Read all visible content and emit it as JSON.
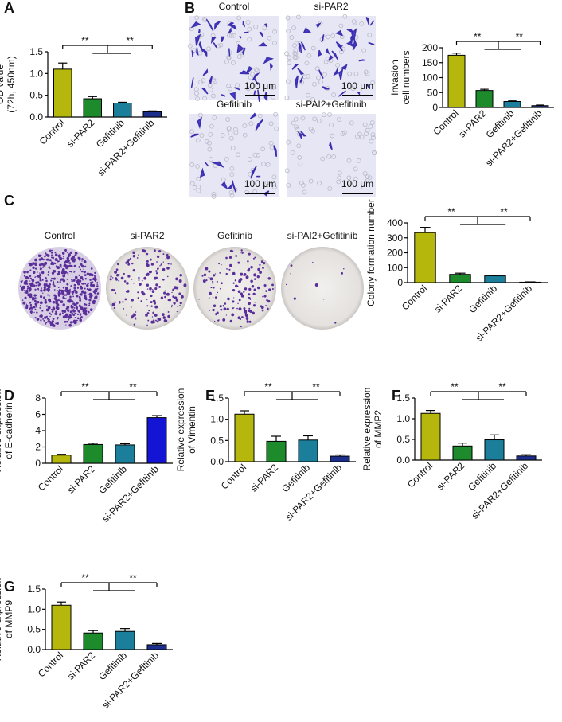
{
  "panel_letters": [
    "A",
    "B",
    "C",
    "D",
    "E",
    "F",
    "G"
  ],
  "micrographs": {
    "labels": [
      "Control",
      "si-PAR2",
      "Gefitinib",
      "si-PAI2+Gefitinib"
    ],
    "scale_bar": "100 μm"
  },
  "colony_plates": {
    "labels": [
      "Control",
      "si-PAR2",
      "Gefitinib",
      "si-PAI2+Gefitinib"
    ]
  },
  "chart_data": [
    {
      "type": "bar",
      "ylabel": [
        "OD value",
        "(72h, 450nm)"
      ],
      "categories": [
        "Control",
        "si-PAR2",
        "Gefitinib",
        "si-PAR2+Gefitinib"
      ],
      "values": [
        1.1,
        0.42,
        0.32,
        0.12
      ],
      "errors": [
        0.14,
        0.05,
        0.02,
        0.02
      ],
      "colors": [
        "#b5b70c",
        "#1d8a2c",
        "#1b7f9b",
        "#1d2f8c"
      ],
      "ylim": [
        0,
        1.5
      ],
      "yticks": [
        {
          "value": 0,
          "label": "0.0"
        },
        {
          "value": 0.5,
          "label": "0.5"
        },
        {
          "value": 1,
          "label": "1.0"
        },
        {
          "value": 1.5,
          "label": "1.5"
        }
      ],
      "annotations": [
        "**",
        "**"
      ]
    },
    {
      "type": "bar",
      "ylabel": [
        "Invasion",
        "cell numbers"
      ],
      "categories": [
        "Control",
        "si-PAR2",
        "Gefitinib",
        "si-PAR2+Gefitinib"
      ],
      "values": [
        175,
        57,
        20,
        6
      ],
      "errors": [
        7,
        4,
        2,
        2
      ],
      "colors": [
        "#b5b70c",
        "#1d8a2c",
        "#1b7f9b",
        "#1d2f8c"
      ],
      "ylim": [
        0,
        200
      ],
      "yticks": [
        0,
        50,
        100,
        150,
        200
      ],
      "annotations": [
        "**",
        "**"
      ]
    },
    {
      "type": "bar",
      "ylabel": [
        "Colony formation number"
      ],
      "categories": [
        "Control",
        "si-PAR2",
        "Gefitinib",
        "si-PAR2+Gefitinib"
      ],
      "values": [
        335,
        55,
        45,
        3
      ],
      "errors": [
        35,
        8,
        5,
        2
      ],
      "colors": [
        "#b5b70c",
        "#1d8a2c",
        "#1b7f9b",
        "#1d2f8c"
      ],
      "ylim": [
        0,
        400
      ],
      "yticks": [
        0,
        100,
        200,
        300,
        400
      ],
      "annotations": [
        "**",
        "**"
      ]
    },
    {
      "type": "bar",
      "ylabel": [
        "Relative expression",
        "of E-cadherin"
      ],
      "categories": [
        "Control",
        "si-PAR2",
        "Gefitinib",
        "si-PAR2+Gefitinib"
      ],
      "values": [
        1,
        2.3,
        2.25,
        5.6
      ],
      "errors": [
        0.1,
        0.15,
        0.15,
        0.25
      ],
      "colors": [
        "#b5b70c",
        "#1d8a2c",
        "#1b7f9b",
        "#1414d4"
      ],
      "ylim": [
        0,
        8
      ],
      "yticks": [
        0,
        2,
        4,
        6,
        8
      ],
      "annotations": [
        "**",
        "**"
      ]
    },
    {
      "type": "bar",
      "ylabel": [
        "Relative expression",
        "of Vimentin"
      ],
      "categories": [
        "Control",
        "si-PAR2",
        "Gefitinib",
        "si-PAR2+Gefitinib"
      ],
      "values": [
        1.12,
        0.48,
        0.51,
        0.13
      ],
      "errors": [
        0.08,
        0.12,
        0.1,
        0.03
      ],
      "colors": [
        "#b5b70c",
        "#1d8a2c",
        "#1b7f9b",
        "#1d2f8c"
      ],
      "ylim": [
        0,
        1.5
      ],
      "yticks": [
        {
          "value": 0,
          "label": "0.0"
        },
        {
          "value": 0.5,
          "label": "0.5"
        },
        {
          "value": 1,
          "label": "1.0"
        },
        {
          "value": 1.5,
          "label": "1.5"
        }
      ],
      "annotations": [
        "**",
        "**"
      ]
    },
    {
      "type": "bar",
      "ylabel": [
        "Relative expression",
        "of MMP2"
      ],
      "categories": [
        "Control",
        "si-PAR2",
        "Gefitinib",
        "si-PAR2+Gefitinib"
      ],
      "values": [
        1.13,
        0.34,
        0.49,
        0.1
      ],
      "errors": [
        0.07,
        0.07,
        0.12,
        0.03
      ],
      "colors": [
        "#b5b70c",
        "#1d8a2c",
        "#1b7f9b",
        "#1d2f8c"
      ],
      "ylim": [
        0,
        1.5
      ],
      "yticks": [
        {
          "value": 0,
          "label": "0.0"
        },
        {
          "value": 0.5,
          "label": "0.5"
        },
        {
          "value": 1,
          "label": "1.0"
        },
        {
          "value": 1.5,
          "label": "1.5"
        }
      ],
      "annotations": [
        "**",
        "**"
      ]
    },
    {
      "type": "bar",
      "ylabel": [
        "Relative expression",
        "of MMP9"
      ],
      "categories": [
        "Control",
        "si-PAR2",
        "Gefitinib",
        "si-PAR2+Gefitinib"
      ],
      "values": [
        1.1,
        0.41,
        0.45,
        0.12
      ],
      "errors": [
        0.08,
        0.06,
        0.07,
        0.03
      ],
      "colors": [
        "#b5b70c",
        "#1d8a2c",
        "#1b7f9b",
        "#1d2f8c"
      ],
      "ylim": [
        0,
        1.5
      ],
      "yticks": [
        {
          "value": 0,
          "label": "0.0"
        },
        {
          "value": 0.5,
          "label": "0.5"
        },
        {
          "value": 1,
          "label": "1.0"
        },
        {
          "value": 1.5,
          "label": "1.5"
        }
      ],
      "annotations": [
        "**",
        "**"
      ]
    }
  ]
}
